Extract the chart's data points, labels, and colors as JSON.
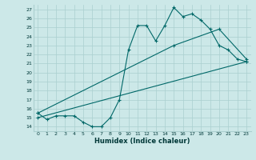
{
  "xlabel": "Humidex (Indice chaleur)",
  "background_color": "#cce8e8",
  "grid_color": "#aacfcf",
  "line_color": "#006868",
  "xlim": [
    -0.5,
    23.5
  ],
  "ylim": [
    13.5,
    27.5
  ],
  "yticks": [
    14,
    15,
    16,
    17,
    18,
    19,
    20,
    21,
    22,
    23,
    24,
    25,
    26,
    27
  ],
  "xticks": [
    0,
    1,
    2,
    3,
    4,
    5,
    6,
    7,
    8,
    9,
    10,
    11,
    12,
    13,
    14,
    15,
    16,
    17,
    18,
    19,
    20,
    21,
    22,
    23
  ],
  "line1_x": [
    0,
    1,
    2,
    3,
    4,
    5,
    6,
    7,
    8,
    9,
    10,
    11,
    12,
    13,
    14,
    15,
    16,
    17,
    18,
    19,
    20,
    21,
    22,
    23
  ],
  "line1_y": [
    15.5,
    14.8,
    15.2,
    15.2,
    15.2,
    14.5,
    14.0,
    14.0,
    15.0,
    17.0,
    22.5,
    25.2,
    25.2,
    23.5,
    25.2,
    27.2,
    26.2,
    26.5,
    25.8,
    24.8,
    23.0,
    22.5,
    21.5,
    21.2
  ],
  "line2_x": [
    0,
    23
  ],
  "line2_y": [
    15.0,
    21.2
  ],
  "line3_x": [
    0,
    15,
    20,
    23
  ],
  "line3_y": [
    15.5,
    23.0,
    24.8,
    21.5
  ]
}
